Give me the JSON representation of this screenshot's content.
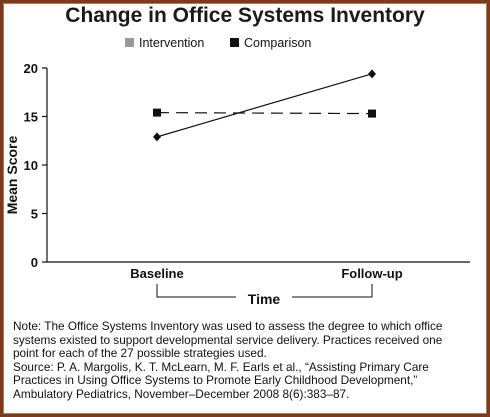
{
  "chart_data": {
    "type": "line",
    "title": "Change in Office Systems Inventory",
    "categories": [
      "Baseline",
      "Follow-up"
    ],
    "xlabel": "Time",
    "ylabel": "Mean Score",
    "ylim": [
      0,
      20
    ],
    "yticks": [
      0,
      5,
      10,
      15,
      20
    ],
    "grid": false,
    "legend_position": "top",
    "series": [
      {
        "name": "Intervention",
        "values": [
          12.9,
          19.4
        ],
        "line_style": "solid",
        "marker": "diamond",
        "legend_color": "#999999"
      },
      {
        "name": "Comparison",
        "values": [
          15.4,
          15.3
        ],
        "line_style": "dashed",
        "marker": "square",
        "legend_color": "#111111"
      }
    ]
  },
  "note": {
    "lines": [
      "Note: The Office Systems Inventory was used to assess the degree to which office",
      "systems existed to support developmental service delivery. Practices received one",
      "point for each of the 27 possible strategies used.",
      "Source: P. A. Margolis, K. T. McLearn, M. F. Earls et al., “Assisting Primary Care",
      "Practices in Using Office Systems to Promote Early Childhood Development,”",
      "Ambulatory Pediatrics, November–December 2008 8(6):383–87."
    ]
  },
  "colors": {
    "border": "#7a3b1e",
    "ink": "#111111"
  }
}
